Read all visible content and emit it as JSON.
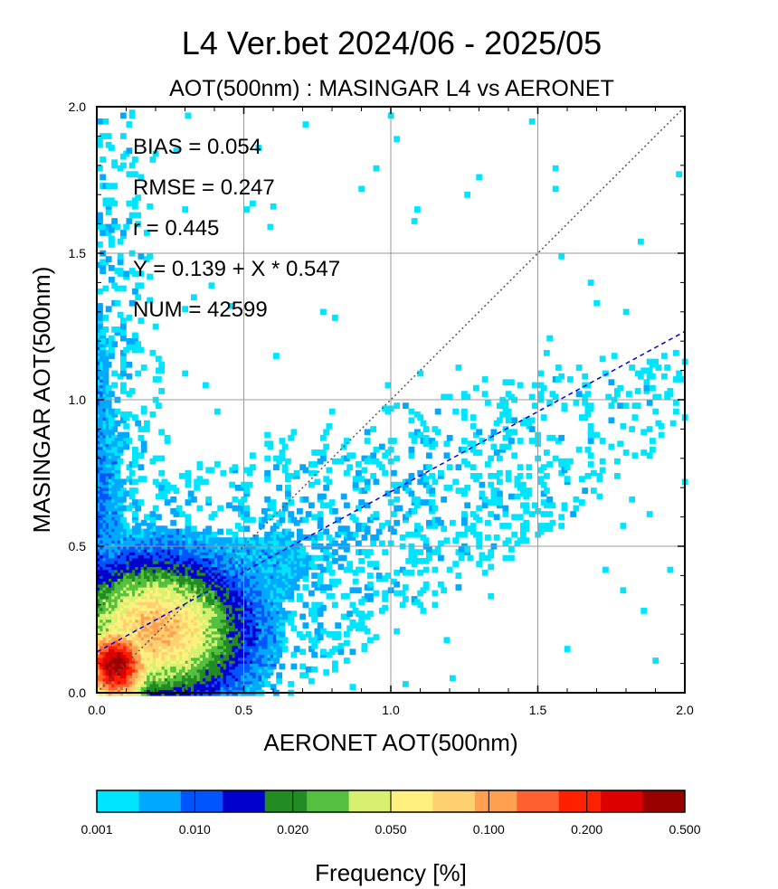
{
  "chart_data": {
    "type": "heatmap",
    "title": "L4  Ver.bet  2024/06 - 2025/05",
    "subtitle": "AOT(500nm) : MASINGAR L4 vs AERONET",
    "xlabel": "AERONET AOT(500nm)",
    "ylabel": "MASINGAR AOT(500nm)",
    "xlim": [
      0.0,
      2.0
    ],
    "ylim": [
      0.0,
      2.0
    ],
    "xticks": [
      "0.0",
      "0.5",
      "1.0",
      "1.5",
      "2.0"
    ],
    "yticks": [
      "0.0",
      "0.5",
      "1.0",
      "1.5",
      "2.0"
    ],
    "grid": true,
    "stats": [
      "BIAS = 0.054",
      "RMSE = 0.247",
      "r = 0.445",
      "Y = 0.139 + X * 0.547",
      "NUM = 42599"
    ],
    "one_to_one_line": {
      "x": [
        0.0,
        2.0
      ],
      "y": [
        0.0,
        2.0
      ],
      "style": "dotted",
      "color": "#555555"
    },
    "regression_line": {
      "intercept": 0.139,
      "slope": 0.547,
      "style": "dashed",
      "color": "#0000dd"
    },
    "density": {
      "description": "2D histogram frequency [%] of MASINGAR vs AERONET AOT pairs",
      "core_center": [
        0.06,
        0.1
      ],
      "max_frequency": 0.5,
      "regions": [
        {
          "x_range": [
            0.0,
            0.15
          ],
          "y_range": [
            0.0,
            0.25
          ],
          "level": "0.200-0.500"
        },
        {
          "x_range": [
            0.0,
            0.3
          ],
          "y_range": [
            0.0,
            0.45
          ],
          "level": "0.050-0.100"
        },
        {
          "x_range": [
            0.0,
            0.5
          ],
          "y_range": [
            0.0,
            0.7
          ],
          "level": "0.010-0.020"
        },
        {
          "x_range": [
            0.0,
            2.0
          ],
          "y_range": [
            0.0,
            2.0
          ],
          "level": "0.001-0.010"
        }
      ]
    },
    "colorbar": {
      "label": "Frequency [%]",
      "ticks": [
        "0.001",
        "0.010",
        "0.020",
        "0.050",
        "0.100",
        "0.200",
        "0.500"
      ],
      "colors": [
        "#00e5ff",
        "#00a8ff",
        "#0055ff",
        "#0000cc",
        "#228b22",
        "#55c040",
        "#d8f070",
        "#fff080",
        "#ffd070",
        "#ffa050",
        "#ff6030",
        "#ff2000",
        "#dd0000",
        "#990000"
      ]
    }
  }
}
